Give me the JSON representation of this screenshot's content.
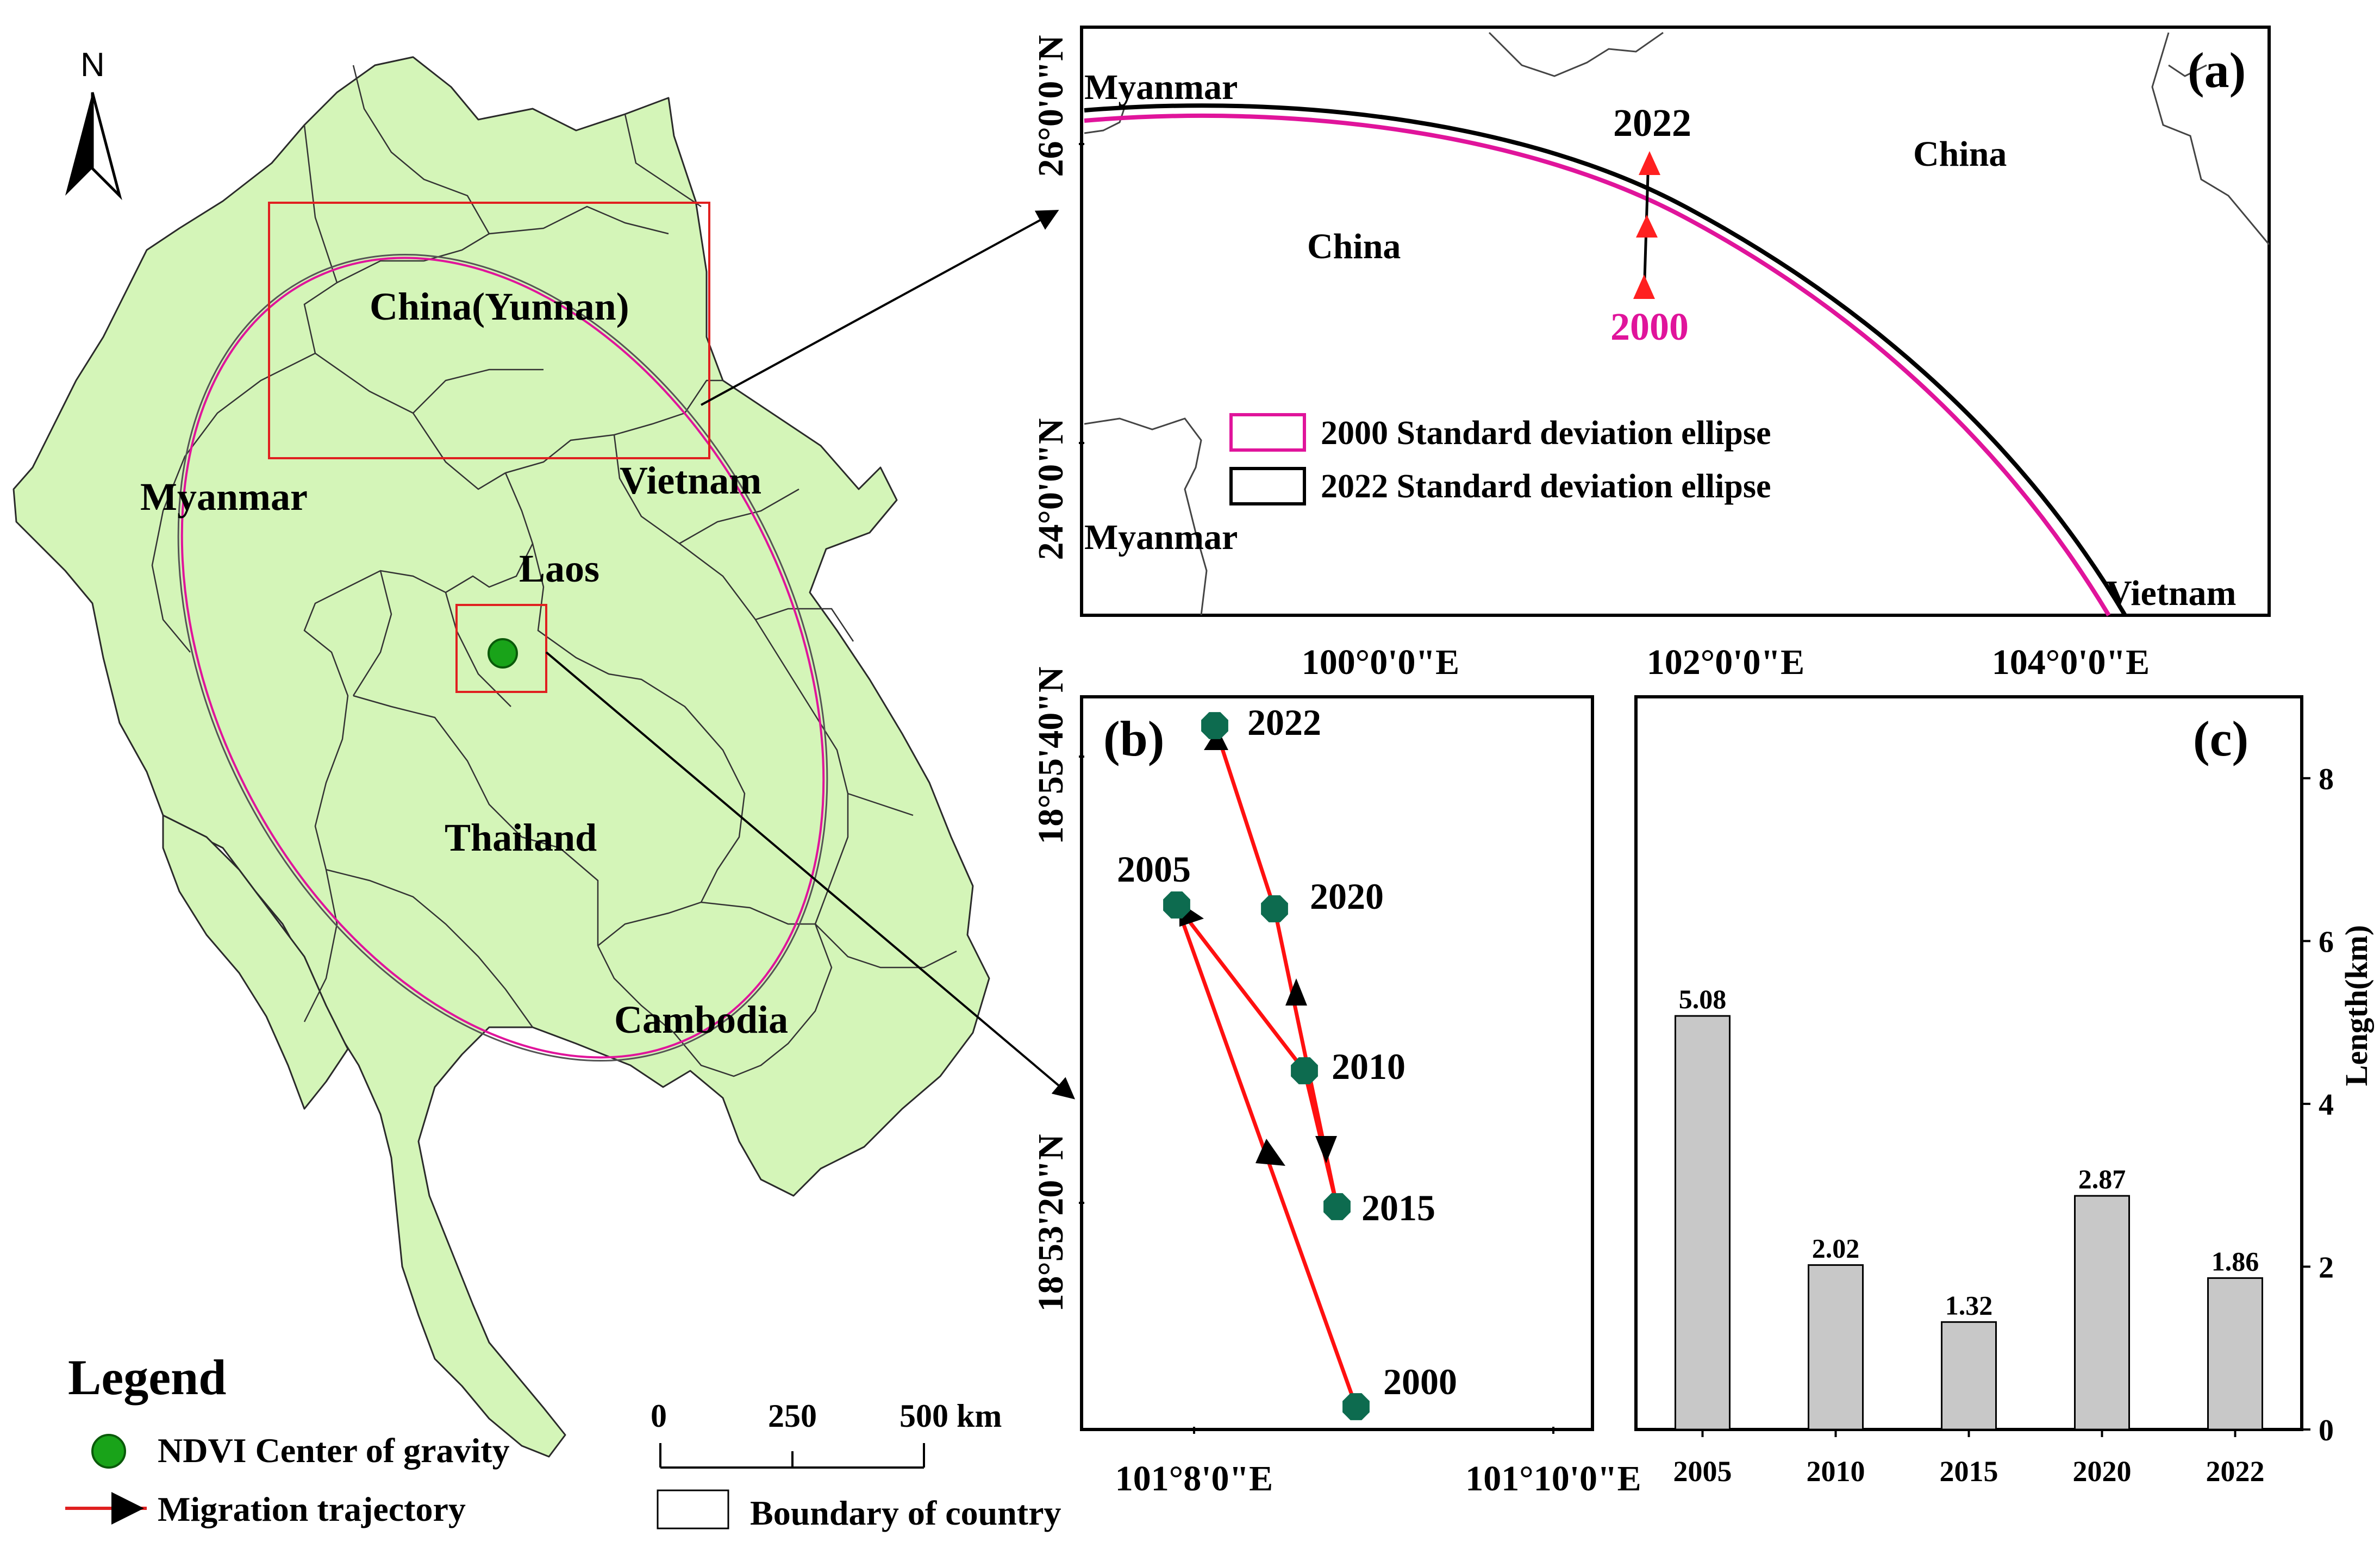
{
  "main_map": {
    "north_label": "N",
    "labels": {
      "china": "China(Yunnan)",
      "myanmar": "Myanmar",
      "vietnam": "Vietnam",
      "laos": "Laos",
      "thailand": "Thailand",
      "cambodia": "Cambodia"
    },
    "scale_bar": {
      "ticks": [
        "0",
        "250",
        "500 km"
      ]
    },
    "boundary_label": "Boundary of country"
  },
  "legend": {
    "title": "Legend",
    "items": [
      "NDVI Center of gravity",
      "Migration trajectory"
    ]
  },
  "colors": {
    "land": "#d4f5b8",
    "ellipse_2000": "#e0149b",
    "ellipse_2022": "#000000",
    "trajectory": "#ff0000",
    "gravity_point": "#0d6b4f",
    "legend_point": "#19a319",
    "bar": "#c8c8c8"
  },
  "panel_a": {
    "tag": "(a)",
    "lat_labels": [
      "26°0'0\"N",
      "24°0'0\"N"
    ],
    "lon_labels": [
      "100°0'0\"E",
      "102°0'0\"E",
      "104°0'0\"E"
    ],
    "places": {
      "myanmar_top": "Myanmar",
      "china_left": "China",
      "china_right": "China",
      "myanmar_bottom": "Myanmar",
      "vietnam": "Vietnam"
    },
    "year_top": "2022",
    "year_bottom": "2000",
    "legend_items": [
      "2000 Standard deviation ellipse",
      "2022 Standard deviation ellipse"
    ]
  },
  "panel_b": {
    "tag": "(b)",
    "lat_labels": [
      "18°55'40\"N",
      "18°53'20\"N"
    ],
    "lon_labels": [
      "101°8'0\"E",
      "101°10'0\"E"
    ],
    "points": [
      {
        "year": "2000"
      },
      {
        "year": "2005"
      },
      {
        "year": "2010"
      },
      {
        "year": "2015"
      },
      {
        "year": "2020"
      },
      {
        "year": "2022"
      }
    ]
  },
  "chart_data": {
    "type": "bar",
    "tag": "(c)",
    "categories": [
      "2005",
      "2010",
      "2015",
      "2020",
      "2022"
    ],
    "values": [
      5.08,
      2.02,
      1.32,
      2.87,
      1.86
    ],
    "value_labels": [
      "5.08",
      "2.02",
      "1.32",
      "2.87",
      "1.86"
    ],
    "ylabel": "Length(km)",
    "yticks": [
      "0",
      "2",
      "4",
      "6",
      "8"
    ],
    "ylim": [
      0,
      9
    ]
  }
}
